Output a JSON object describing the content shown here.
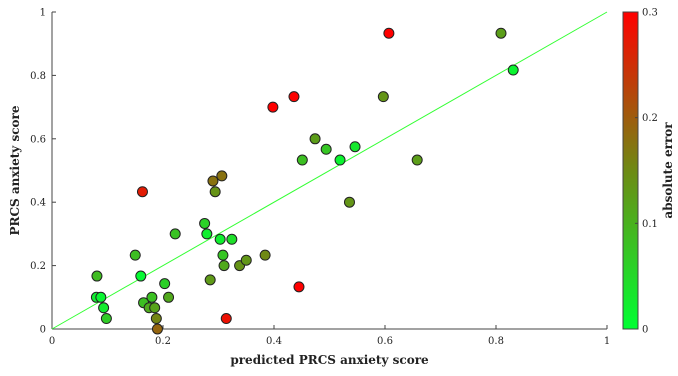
{
  "chart_data": {
    "type": "scatter",
    "title": "",
    "xlabel": "predicted PRCS anxiety score",
    "ylabel": "PRCS anxiety score",
    "xlim": [
      0,
      1
    ],
    "ylim": [
      0,
      1
    ],
    "x_ticks": [
      "0",
      "0.2",
      "0.4",
      "0.6",
      "0.8",
      "1"
    ],
    "y_ticks": [
      "0",
      "0.2",
      "0.4",
      "0.6",
      "0.8",
      "1"
    ],
    "grid": false,
    "reference_line": {
      "from": [
        0,
        0
      ],
      "to": [
        1,
        1
      ],
      "color": "#33ff33"
    },
    "colorbar": {
      "label": "absolute error",
      "range": [
        0,
        0.3
      ],
      "ticks": [
        "0",
        "0.1",
        "0.2",
        "0.3"
      ],
      "color_low": "#00ff33",
      "color_mid": "#6e8a14",
      "color_high": "#ff0000"
    },
    "points": [
      {
        "x": 0.081,
        "y": 0.167
      },
      {
        "x": 0.08,
        "y": 0.1
      },
      {
        "x": 0.088,
        "y": 0.1
      },
      {
        "x": 0.093,
        "y": 0.067
      },
      {
        "x": 0.098,
        "y": 0.033
      },
      {
        "x": 0.15,
        "y": 0.233
      },
      {
        "x": 0.16,
        "y": 0.167
      },
      {
        "x": 0.165,
        "y": 0.083
      },
      {
        "x": 0.163,
        "y": 0.433
      },
      {
        "x": 0.175,
        "y": 0.067
      },
      {
        "x": 0.18,
        "y": 0.1
      },
      {
        "x": 0.185,
        "y": 0.067
      },
      {
        "x": 0.188,
        "y": 0.033
      },
      {
        "x": 0.19,
        "y": 0.0
      },
      {
        "x": 0.203,
        "y": 0.143
      },
      {
        "x": 0.21,
        "y": 0.1
      },
      {
        "x": 0.222,
        "y": 0.3
      },
      {
        "x": 0.275,
        "y": 0.333
      },
      {
        "x": 0.279,
        "y": 0.3
      },
      {
        "x": 0.285,
        "y": 0.155
      },
      {
        "x": 0.29,
        "y": 0.467
      },
      {
        "x": 0.294,
        "y": 0.433
      },
      {
        "x": 0.303,
        "y": 0.283
      },
      {
        "x": 0.306,
        "y": 0.483
      },
      {
        "x": 0.308,
        "y": 0.233
      },
      {
        "x": 0.31,
        "y": 0.2
      },
      {
        "x": 0.314,
        "y": 0.033
      },
      {
        "x": 0.324,
        "y": 0.283
      },
      {
        "x": 0.338,
        "y": 0.2
      },
      {
        "x": 0.35,
        "y": 0.217
      },
      {
        "x": 0.384,
        "y": 0.233
      },
      {
        "x": 0.398,
        "y": 0.7
      },
      {
        "x": 0.436,
        "y": 0.733
      },
      {
        "x": 0.445,
        "y": 0.133
      },
      {
        "x": 0.451,
        "y": 0.533
      },
      {
        "x": 0.474,
        "y": 0.6
      },
      {
        "x": 0.494,
        "y": 0.567
      },
      {
        "x": 0.519,
        "y": 0.533
      },
      {
        "x": 0.536,
        "y": 0.4
      },
      {
        "x": 0.546,
        "y": 0.575
      },
      {
        "x": 0.597,
        "y": 0.733
      },
      {
        "x": 0.607,
        "y": 0.933
      },
      {
        "x": 0.658,
        "y": 0.533
      },
      {
        "x": 0.809,
        "y": 0.933
      },
      {
        "x": 0.831,
        "y": 0.817
      }
    ]
  }
}
